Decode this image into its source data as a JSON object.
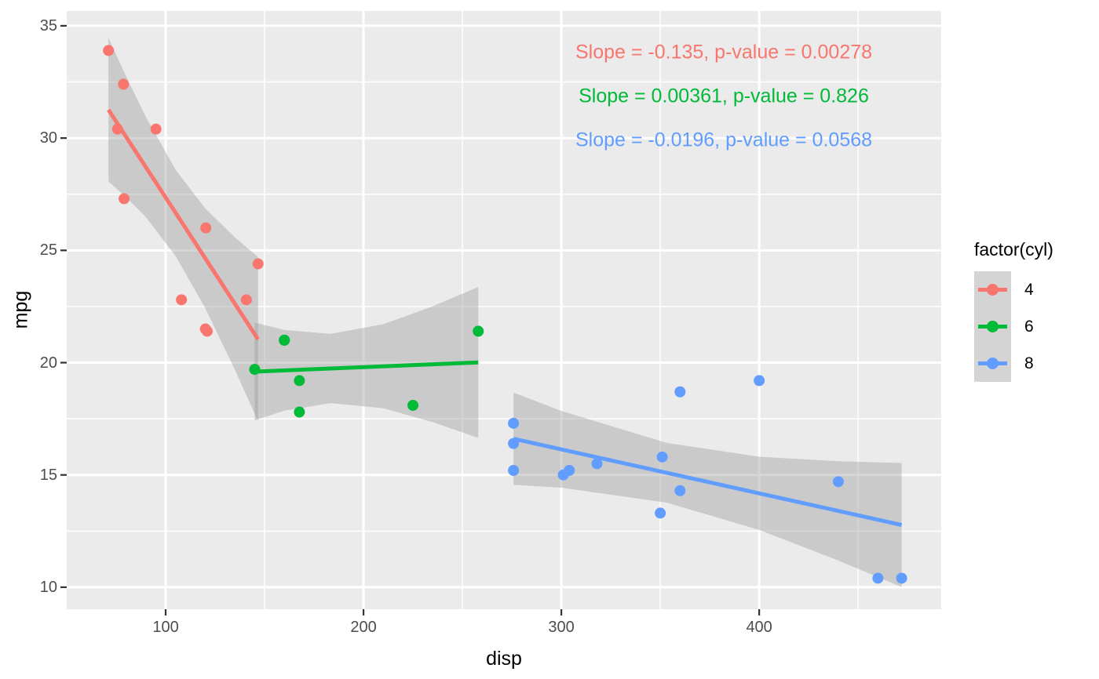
{
  "chart_data": {
    "type": "scatter",
    "xlabel": "disp",
    "ylabel": "mpg",
    "x_ticks": [
      100,
      200,
      300,
      400
    ],
    "x_minor_ticks": [
      150,
      250,
      350,
      450
    ],
    "y_ticks": [
      10,
      15,
      20,
      25,
      30,
      35
    ],
    "y_minor_ticks": [
      12.5,
      17.5,
      22.5,
      27.5,
      32.5
    ],
    "xlim": [
      50,
      492
    ],
    "ylim": [
      9.02,
      35.66
    ],
    "grid": "on",
    "annotations": [
      {
        "text": "Slope = -0.135, p-value = 0.00278",
        "color": "#F8766D"
      },
      {
        "text": "Slope = 0.00361, p-value = 0.826",
        "color": "#00BA38"
      },
      {
        "text": "Slope = -0.0196, p-value = 0.0568",
        "color": "#619CFF"
      }
    ],
    "legend": {
      "title": "factor(cyl)",
      "position": "right",
      "entries": [
        {
          "label": "4",
          "color": "#F8766D"
        },
        {
          "label": "6",
          "color": "#00BA38"
        },
        {
          "label": "8",
          "color": "#619CFF"
        }
      ]
    },
    "series": [
      {
        "name": "4",
        "color": "#F8766D",
        "slope": -0.135,
        "p_value": 0.00278,
        "points": [
          [
            108,
            22.8
          ],
          [
            146.7,
            24.4
          ],
          [
            140.8,
            22.8
          ],
          [
            78.7,
            32.4
          ],
          [
            75.7,
            30.4
          ],
          [
            71.1,
            33.9
          ],
          [
            120.1,
            21.5
          ],
          [
            121,
            21.4
          ],
          [
            79,
            27.3
          ],
          [
            120.3,
            26.0
          ],
          [
            95.1,
            30.4
          ]
        ],
        "line": [
          [
            71.1,
            31.26
          ],
          [
            146.7,
            21.04
          ]
        ],
        "ribbon": [
          [
            71.1,
            28.07,
            34.46
          ],
          [
            80,
            27.37,
            32.75
          ],
          [
            90,
            26.48,
            30.94
          ],
          [
            105.1,
            24.74,
            28.58
          ],
          [
            120,
            22.43,
            26.87
          ],
          [
            135,
            19.68,
            25.58
          ],
          [
            146.7,
            17.39,
            24.71
          ]
        ]
      },
      {
        "name": "6",
        "color": "#00BA38",
        "slope": 0.00361,
        "p_value": 0.826,
        "points": [
          [
            160,
            21.0
          ],
          [
            160,
            21.0
          ],
          [
            258,
            21.4
          ],
          [
            225,
            18.1
          ],
          [
            167.6,
            19.2
          ],
          [
            167.6,
            17.8
          ],
          [
            145,
            19.7
          ]
        ],
        "line": [
          [
            145,
            19.6
          ],
          [
            258,
            20.01
          ]
        ],
        "ribbon": [
          [
            145,
            17.43,
            21.78
          ],
          [
            160,
            17.86,
            21.46
          ],
          [
            183.3,
            18.2,
            21.28
          ],
          [
            210,
            17.97,
            21.71
          ],
          [
            235,
            17.35,
            22.51
          ],
          [
            258,
            16.65,
            23.37
          ]
        ]
      },
      {
        "name": "8",
        "color": "#619CFF",
        "slope": -0.0196,
        "p_value": 0.0568,
        "points": [
          [
            360,
            18.7
          ],
          [
            360,
            14.3
          ],
          [
            275.8,
            16.4
          ],
          [
            275.8,
            17.3
          ],
          [
            275.8,
            15.2
          ],
          [
            472,
            10.4
          ],
          [
            460,
            10.4
          ],
          [
            440,
            14.7
          ],
          [
            318,
            15.5
          ],
          [
            304,
            15.2
          ],
          [
            350,
            13.3
          ],
          [
            400,
            19.2
          ],
          [
            351,
            15.8
          ],
          [
            301,
            15.0
          ]
        ],
        "line": [
          [
            275.8,
            16.61
          ],
          [
            472,
            12.77
          ]
        ],
        "ribbon": [
          [
            275.8,
            14.56,
            18.67
          ],
          [
            300,
            14.43,
            17.85
          ],
          [
            353.1,
            13.77,
            16.43
          ],
          [
            400,
            12.55,
            15.81
          ],
          [
            440,
            11.19,
            15.61
          ],
          [
            472,
            10.01,
            15.53
          ]
        ]
      }
    ],
    "style": {
      "panel_bg": "#EBEBEB",
      "grid_color": "#FFFFFF",
      "ribbon_fill": "rgba(153,153,153,0.40)",
      "tick_mark_color": "#333333",
      "tick_label_color": "#4D4D4D",
      "legend_key_bg": "#D4D4D4"
    }
  }
}
